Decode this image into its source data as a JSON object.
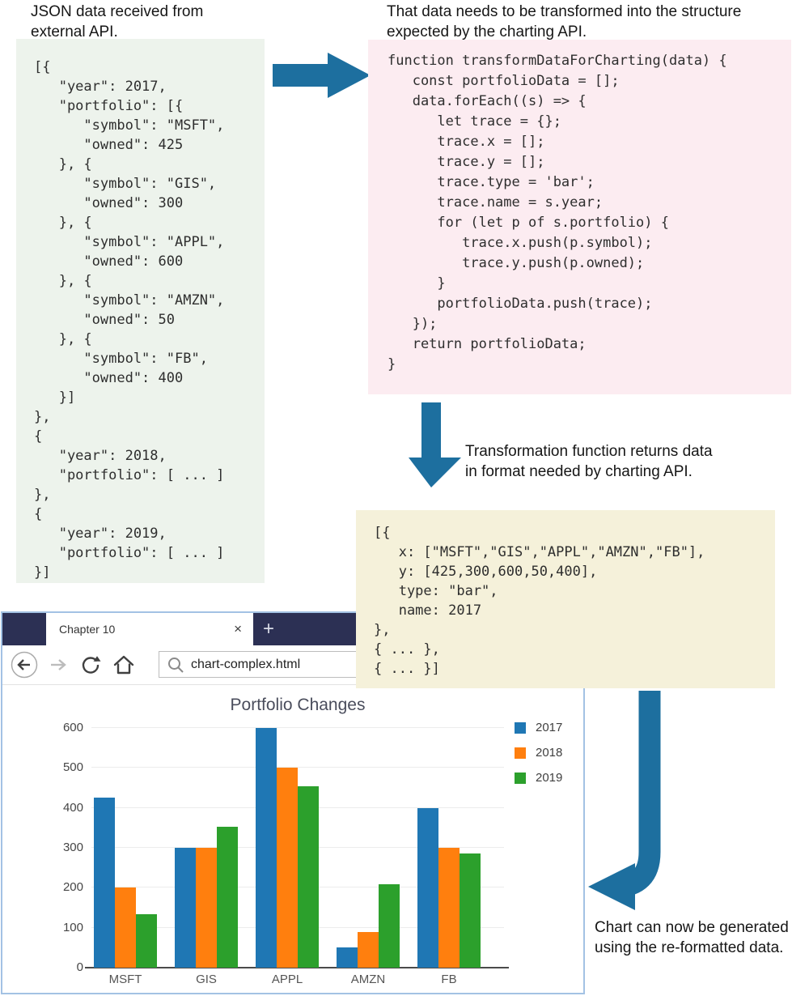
{
  "arrow_color": "#1d6f9f",
  "captions": {
    "source": "JSON data received from\nexternal API.",
    "transform": "That data needs to be transformed into the structure\nexpected by the charting API.",
    "returns": "Transformation function returns data\nin format needed by charting API.",
    "chart": "Chart can now be generated\nusing the re-formatted data."
  },
  "code_blocks": {
    "source_json": {
      "bg": "#edf3ec",
      "lines": [
        "[{",
        "   \"year\": 2017,",
        "   \"portfolio\": [{",
        "      \"symbol\": \"MSFT\",",
        "      \"owned\": 425",
        "   }, {",
        "      \"symbol\": \"GIS\",",
        "      \"owned\": 300",
        "   }, {",
        "      \"symbol\": \"APPL\",",
        "      \"owned\": 600",
        "   }, {",
        "      \"symbol\": \"AMZN\",",
        "      \"owned\": 50",
        "   }, {",
        "      \"symbol\": \"FB\",",
        "      \"owned\": 400",
        "   }]",
        "},",
        "{",
        "   \"year\": 2018,",
        "   \"portfolio\": [ ... ]",
        "},",
        "{",
        "   \"year\": 2019,",
        "   \"portfolio\": [ ... ]",
        "}]"
      ]
    },
    "transform_fn": {
      "bg": "#fcecf1",
      "lines": [
        "function transformDataForCharting(data) {",
        "   const portfolioData = [];",
        "   data.forEach((s) => {",
        "      let trace = {};",
        "      trace.x = [];",
        "      trace.y = [];",
        "      trace.type = 'bar';",
        "      trace.name = s.year;",
        "      for (let p of s.portfolio) {",
        "         trace.x.push(p.symbol);",
        "         trace.y.push(p.owned);",
        "      }",
        "      portfolioData.push(trace);",
        "   });",
        "   return portfolioData;",
        "}"
      ]
    },
    "chart_input": {
      "bg": "#f5f1da",
      "lines": [
        "[{",
        "   x: [\"MSFT\",\"GIS\",\"APPL\",\"AMZN\",\"FB\"],",
        "   y: [425,300,600,50,400],",
        "   type: \"bar\",",
        "   name: 2017",
        "},",
        "{ ... },",
        "{ ... }]"
      ]
    }
  },
  "browser": {
    "tab_title": "Chapter 10",
    "close_label": "×",
    "new_tab_label": "+",
    "url": "chart-complex.html"
  },
  "chart_data": {
    "type": "bar",
    "title": "Portfolio Changes",
    "categories": [
      "MSFT",
      "GIS",
      "APPL",
      "AMZN",
      "FB"
    ],
    "series": [
      {
        "name": "2017",
        "color": "#1f77b4",
        "values": [
          425,
          300,
          600,
          50,
          400
        ]
      },
      {
        "name": "2018",
        "color": "#ff7f0e",
        "values": [
          200,
          300,
          500,
          90,
          300
        ]
      },
      {
        "name": "2019",
        "color": "#2ca02c",
        "values": [
          133,
          352,
          455,
          208,
          285
        ]
      }
    ],
    "xlabel": "",
    "ylabel": "",
    "ylim": [
      0,
      600
    ],
    "yticks": [
      0,
      100,
      200,
      300,
      400,
      500,
      600
    ],
    "grid": true,
    "legend_position": "right"
  }
}
